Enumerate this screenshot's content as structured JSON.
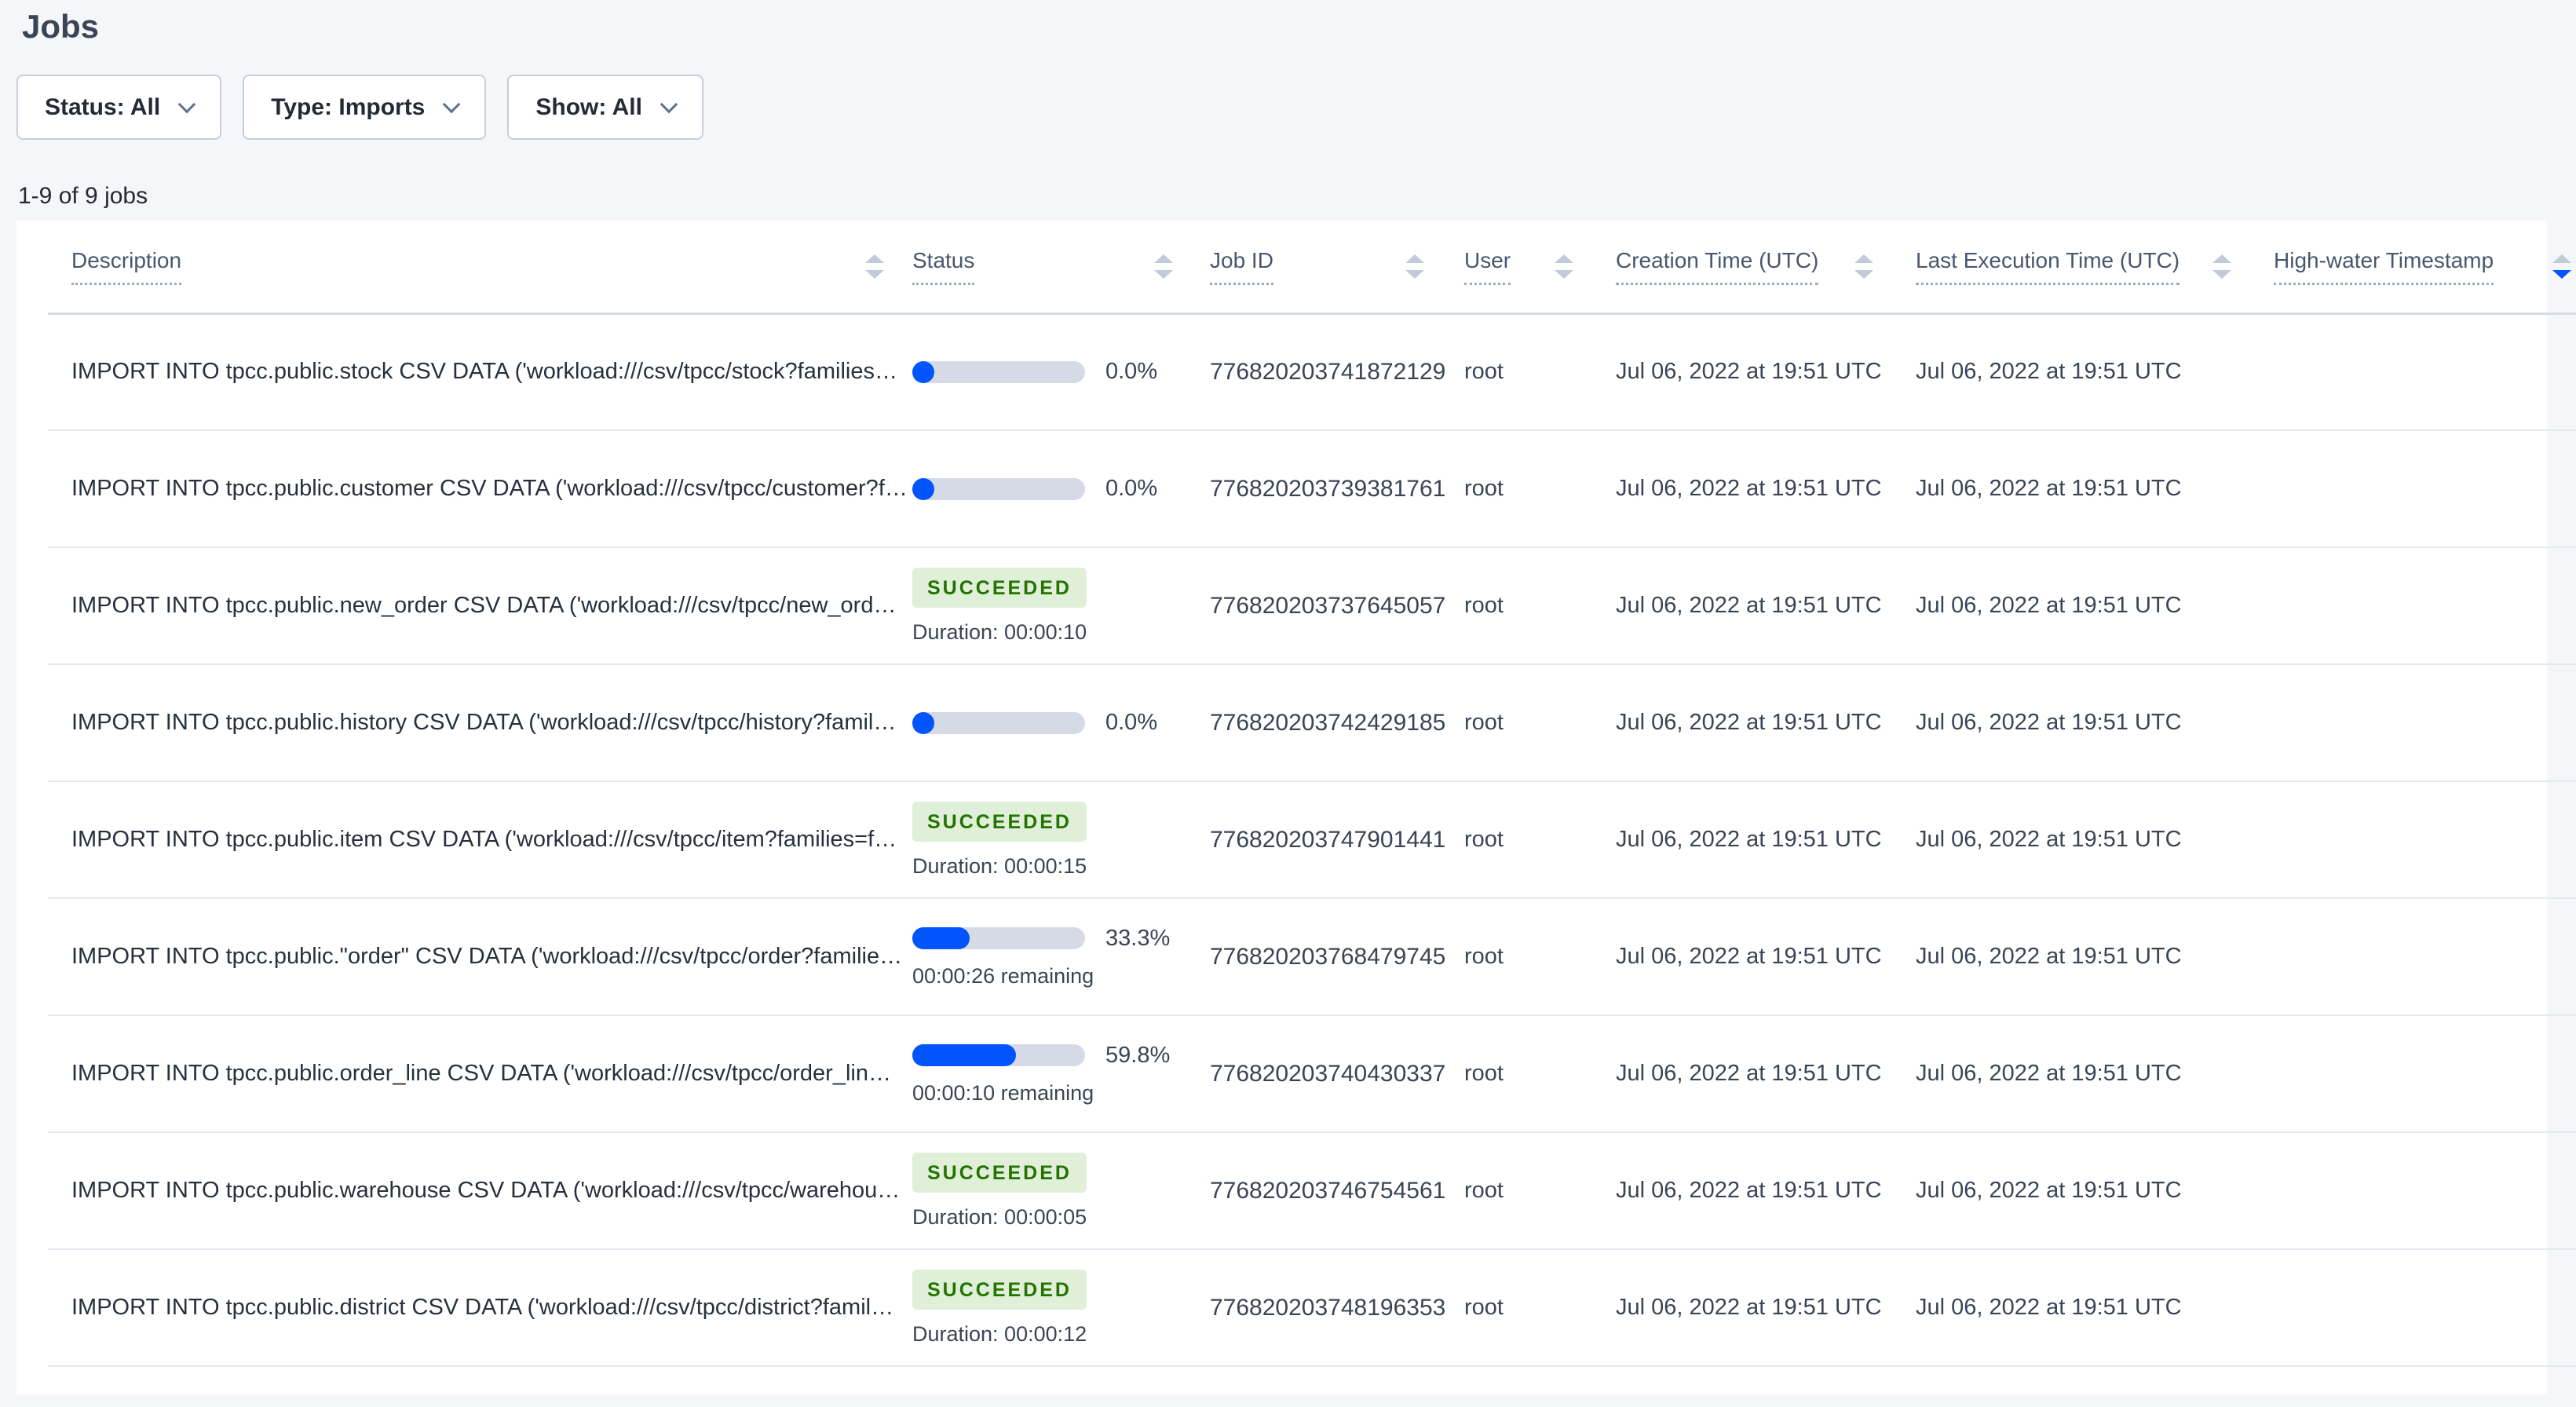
{
  "page": {
    "title": "Jobs"
  },
  "filters": [
    {
      "label": "Status: All"
    },
    {
      "label": "Type: Imports"
    },
    {
      "label": "Show: All"
    }
  ],
  "summary": "1-9 of 9 jobs",
  "table": {
    "columns": [
      {
        "label": "Description",
        "key": "desc"
      },
      {
        "label": "Status",
        "key": "status"
      },
      {
        "label": "Job ID",
        "key": "job_id"
      },
      {
        "label": "User",
        "key": "user"
      },
      {
        "label": "Creation Time (UTC)",
        "key": "creation_time"
      },
      {
        "label": "Last Execution Time (UTC)",
        "key": "last_execution_time"
      },
      {
        "label": "High-water Timestamp",
        "key": "high_water_timestamp",
        "sort_active": "desc"
      }
    ],
    "rows": [
      {
        "description": "IMPORT INTO tpcc.public.stock CSV DATA ('workload:///csv/tpcc/stock?families…",
        "status": {
          "type": "progress",
          "percent_label": "0.0%",
          "fraction": 0.0
        },
        "job_id": "776820203741872129",
        "user": "root",
        "creation_time": "Jul 06, 2022 at 19:51 UTC",
        "last_execution_time": "Jul 06, 2022 at 19:51 UTC",
        "high_water_timestamp": ""
      },
      {
        "description": "IMPORT INTO tpcc.public.customer CSV DATA ('workload:///csv/tpcc/customer?f…",
        "status": {
          "type": "progress",
          "percent_label": "0.0%",
          "fraction": 0.0
        },
        "job_id": "776820203739381761",
        "user": "root",
        "creation_time": "Jul 06, 2022 at 19:51 UTC",
        "last_execution_time": "Jul 06, 2022 at 19:51 UTC",
        "high_water_timestamp": ""
      },
      {
        "description": "IMPORT INTO tpcc.public.new_order CSV DATA ('workload:///csv/tpcc/new_ord…",
        "status": {
          "type": "succeeded",
          "badge": "SUCCEEDED",
          "duration": "Duration: 00:00:10"
        },
        "job_id": "776820203737645057",
        "user": "root",
        "creation_time": "Jul 06, 2022 at 19:51 UTC",
        "last_execution_time": "Jul 06, 2022 at 19:51 UTC",
        "high_water_timestamp": ""
      },
      {
        "description": "IMPORT INTO tpcc.public.history CSV DATA ('workload:///csv/tpcc/history?famil…",
        "status": {
          "type": "progress",
          "percent_label": "0.0%",
          "fraction": 0.0
        },
        "job_id": "776820203742429185",
        "user": "root",
        "creation_time": "Jul 06, 2022 at 19:51 UTC",
        "last_execution_time": "Jul 06, 2022 at 19:51 UTC",
        "high_water_timestamp": ""
      },
      {
        "description": "IMPORT INTO tpcc.public.item CSV DATA ('workload:///csv/tpcc/item?families=f…",
        "status": {
          "type": "succeeded",
          "badge": "SUCCEEDED",
          "duration": "Duration: 00:00:15"
        },
        "job_id": "776820203747901441",
        "user": "root",
        "creation_time": "Jul 06, 2022 at 19:51 UTC",
        "last_execution_time": "Jul 06, 2022 at 19:51 UTC",
        "high_water_timestamp": ""
      },
      {
        "description": "IMPORT INTO tpcc.public.\"order\" CSV DATA ('workload:///csv/tpcc/order?familie…",
        "status": {
          "type": "progress",
          "percent_label": "33.3%",
          "fraction": 0.333,
          "remaining": "00:00:26 remaining"
        },
        "job_id": "776820203768479745",
        "user": "root",
        "creation_time": "Jul 06, 2022 at 19:51 UTC",
        "last_execution_time": "Jul 06, 2022 at 19:51 UTC",
        "high_water_timestamp": ""
      },
      {
        "description": "IMPORT INTO tpcc.public.order_line CSV DATA ('workload:///csv/tpcc/order_lin…",
        "status": {
          "type": "progress",
          "percent_label": "59.8%",
          "fraction": 0.598,
          "remaining": "00:00:10 remaining"
        },
        "job_id": "776820203740430337",
        "user": "root",
        "creation_time": "Jul 06, 2022 at 19:51 UTC",
        "last_execution_time": "Jul 06, 2022 at 19:51 UTC",
        "high_water_timestamp": ""
      },
      {
        "description": "IMPORT INTO tpcc.public.warehouse CSV DATA ('workload:///csv/tpcc/warehou…",
        "status": {
          "type": "succeeded",
          "badge": "SUCCEEDED",
          "duration": "Duration: 00:00:05"
        },
        "job_id": "776820203746754561",
        "user": "root",
        "creation_time": "Jul 06, 2022 at 19:51 UTC",
        "last_execution_time": "Jul 06, 2022 at 19:51 UTC",
        "high_water_timestamp": ""
      },
      {
        "description": "IMPORT INTO tpcc.public.district CSV DATA ('workload:///csv/tpcc/district?famil…",
        "status": {
          "type": "succeeded",
          "badge": "SUCCEEDED",
          "duration": "Duration: 00:00:12"
        },
        "job_id": "776820203748196353",
        "user": "root",
        "creation_time": "Jul 06, 2022 at 19:51 UTC",
        "last_execution_time": "Jul 06, 2022 at 19:51 UTC",
        "high_water_timestamp": ""
      }
    ]
  },
  "colors": {
    "accent_blue": "#0055ff",
    "progress_track": "#d5dae6",
    "succeeded_bg": "#e0efd8",
    "succeeded_text": "#237300",
    "page_bg": "#f4f6fa",
    "card_bg": "#ffffff",
    "text_primary": "#242a35",
    "text_secondary": "#394455",
    "header_text": "#49566e",
    "row_divider": "#e4e8ef",
    "header_divider": "#d6dbe5",
    "sort_arrow": "#c2cad8",
    "button_border": "#c7cfdc"
  }
}
